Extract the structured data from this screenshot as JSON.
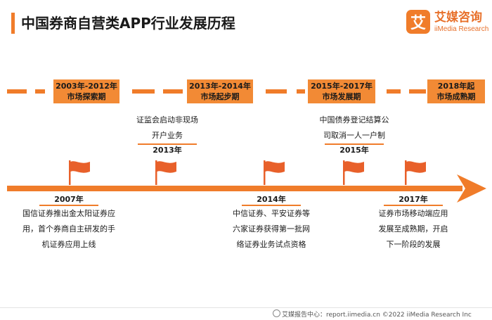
{
  "header": {
    "title": "中国券商自营类APP行业发展历程"
  },
  "logo": {
    "mark": "艾",
    "name": "艾媒咨询",
    "sub": "iiMedia Research"
  },
  "colors": {
    "accent": "#F07C2A",
    "phase_box": "#F28A35",
    "flag": "#E8602A"
  },
  "phases": [
    {
      "line1": "2003年-2012年",
      "line2": "市场探索期"
    },
    {
      "line1": "2013年-2014年",
      "line2": "市场起步期"
    },
    {
      "line1": "2015年-2017年",
      "line2": "市场发展期"
    },
    {
      "line1": "2018年起",
      "line2": "市场成熟期"
    }
  ],
  "events_above": [
    {
      "year": "2013年",
      "lines": [
        "证监会启动非现场",
        "开户业务"
      ]
    },
    {
      "year": "2015年",
      "lines": [
        "中国债券登记结算公",
        "司取消一人一户制"
      ]
    }
  ],
  "events_below": [
    {
      "year": "2007年",
      "lines": [
        "国信证券推出金太阳证券应",
        "用，首个券商自主研发的手",
        "机证券应用上线"
      ]
    },
    {
      "year": "2014年",
      "lines": [
        "中信证券、平安证券等",
        "六家证券获得第一批网",
        "络证券业务试点资格"
      ]
    },
    {
      "year": "2017年",
      "lines": [
        "证券市场移动端应用",
        "发展至成熟期，开启",
        "下一阶段的发展"
      ]
    }
  ],
  "footer": {
    "text": "艾媒报告中心：report.iimedia.cn ©2022 iiMedia Research Inc"
  }
}
